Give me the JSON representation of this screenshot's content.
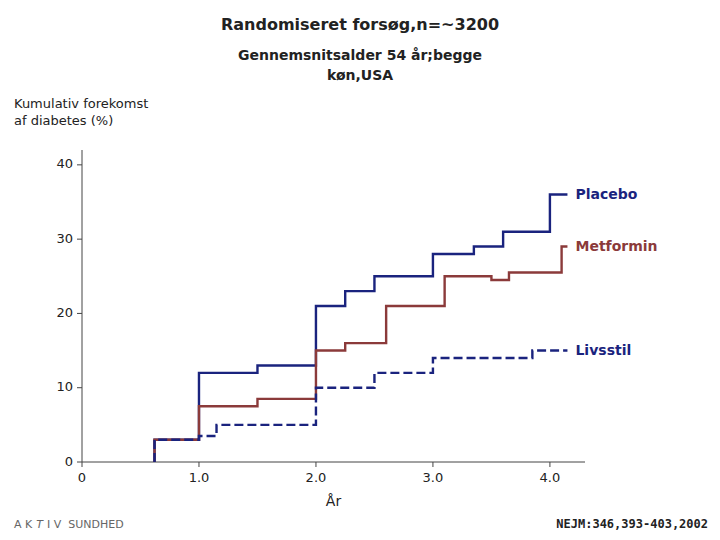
{
  "chart_data": {
    "type": "line",
    "title": "Randomiseret forsøg,n=~3200",
    "subtitle": [
      "Gennemsnitsalder 54 år;begge",
      "køn,USA"
    ],
    "y_label": "Kumulativ forekomst\naf diabetes (%)",
    "x_label": "År",
    "annotations": [
      "NEJM:346,393-403,2002",
      "A K",
      "T",
      "I V  SUNDHED"
    ],
    "xlim": [
      0,
      4.3
    ],
    "ylim": [
      0,
      42
    ],
    "xticks": [
      0,
      {
        "value": 1.0,
        "label": "1.0"
      },
      {
        "value": 2.0,
        "label": "2.0"
      },
      {
        "value": 3.0,
        "label": "3.0"
      },
      {
        "value": 4.0,
        "label": "4.0"
      }
    ],
    "yticks": [
      0,
      10,
      20,
      30,
      40
    ],
    "grid": false,
    "series": [
      {
        "name": "Placebo",
        "color": "#1a237e",
        "line_style": "solid",
        "x": [
          0.62,
          0.62,
          1.0,
          1.0,
          1.5,
          1.5,
          2.0,
          2.0,
          2.25,
          2.25,
          2.5,
          2.5,
          3.0,
          3.0,
          3.35,
          3.35,
          3.6,
          3.6,
          4.0,
          4.0,
          4.15
        ],
        "values": [
          0,
          3,
          3,
          12,
          12,
          13,
          13,
          21,
          21,
          23,
          23,
          25,
          25,
          28,
          28,
          29,
          29,
          31,
          31,
          36,
          36
        ]
      },
      {
        "name": "Metformin",
        "color": "#8b3a3a",
        "line_style": "solid",
        "x": [
          0.62,
          0.62,
          1.0,
          1.0,
          1.5,
          1.5,
          2.0,
          2.0,
          2.25,
          2.25,
          2.6,
          2.6,
          3.1,
          3.1,
          3.5,
          3.5,
          3.65,
          3.65,
          4.1,
          4.1,
          4.15
        ],
        "values": [
          0,
          3,
          3,
          7.5,
          7.5,
          8.5,
          8.5,
          15,
          15,
          16,
          16,
          21,
          21,
          25,
          25,
          24.5,
          24.5,
          25.5,
          25.5,
          29,
          29
        ]
      },
      {
        "name": "Livsstil",
        "color": "#1a237e",
        "line_style": "dashed",
        "x": [
          0.62,
          0.62,
          1.0,
          1.0,
          1.15,
          1.15,
          1.6,
          1.6,
          2.0,
          2.0,
          2.5,
          2.5,
          3.0,
          3.0,
          3.5,
          3.5,
          3.85,
          3.85,
          4.15
        ],
        "values": [
          0,
          3,
          3,
          3.5,
          3.5,
          5,
          5,
          5,
          5,
          10,
          10,
          12,
          12,
          14,
          14,
          14,
          14,
          15,
          15
        ]
      }
    ]
  }
}
